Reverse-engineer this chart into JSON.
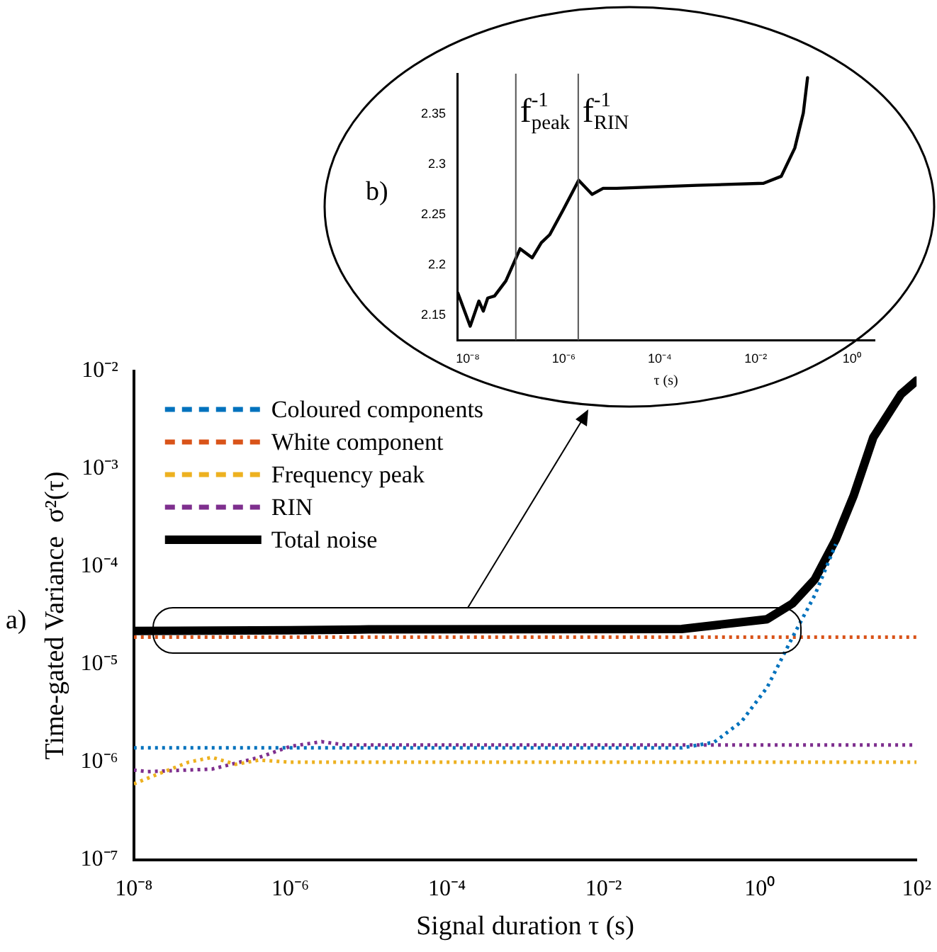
{
  "chart_data": [
    {
      "type": "line",
      "xlabel": "Signal duration τ (s)",
      "ylabel": "Time-gated Variance  σ²(τ)",
      "log": "xy",
      "xlim": [
        1e-08,
        100
      ],
      "ylim": [
        1e-07,
        0.01
      ],
      "xticks": [
        {
          "value": 1e-08,
          "label": "10⁻⁸"
        },
        {
          "value": 1e-06,
          "label": "10⁻⁶"
        },
        {
          "value": 0.0001,
          "label": "10⁻⁴"
        },
        {
          "value": 0.01,
          "label": "10⁻²"
        },
        {
          "value": 1,
          "label": "10⁰"
        },
        {
          "value": 100,
          "label": "10²"
        }
      ],
      "yticks": [
        {
          "value": 1e-07,
          "label": "10⁻⁷"
        },
        {
          "value": 1e-06,
          "label": "10⁻⁶"
        },
        {
          "value": 1e-05,
          "label": "10⁻⁵"
        },
        {
          "value": 0.0001,
          "label": "10⁻⁴"
        },
        {
          "value": 0.001,
          "label": "10⁻³"
        },
        {
          "value": 0.01,
          "label": "10⁻²"
        }
      ],
      "grid": false,
      "legend": "top left",
      "marker": "none",
      "annotations": [
        "a)"
      ],
      "series": [
        {
          "name": "Coloured components",
          "color": "#0072bd",
          "line_style": "dotted",
          "x": [
            1e-08,
            0.1,
            0.26,
            0.58,
            1.23,
            2.6,
            5.0,
            9.3
          ],
          "values": [
            1.4e-06,
            1.4e-06,
            1.6e-06,
            2.6e-06,
            5.8e-06,
            1.9e-05,
            5.1e-05,
            0.00017
          ]
        },
        {
          "name": "White component",
          "color": "#d95319",
          "line_style": "dotted",
          "x": [
            1e-08,
            100
          ],
          "values": [
            1.9e-05,
            1.9e-05
          ]
        },
        {
          "name": "Frequency peak",
          "color": "#edb120",
          "line_style": "dotted",
          "x": [
            1e-08,
            2e-08,
            5e-08,
            1e-07,
            2e-07,
            4e-07,
            1e-06,
            100
          ],
          "values": [
            6e-07,
            7.5e-07,
            1e-06,
            1.12e-06,
            9.5e-07,
            1.05e-06,
            1e-06,
            1e-06
          ]
        },
        {
          "name": "RIN",
          "color": "#7e2f8e",
          "line_style": "dotted",
          "x": [
            1e-08,
            1.5e-08,
            1e-07,
            4e-07,
            1e-06,
            2.5e-06,
            5e-06,
            100
          ],
          "values": [
            8.3e-07,
            8e-07,
            8.5e-07,
            1.12e-06,
            1.45e-06,
            1.62e-06,
            1.5e-06,
            1.5e-06
          ]
        },
        {
          "name": "Total noise",
          "color": "#000000",
          "line_style": "solid",
          "x": [
            1e-08,
            1e-06,
            1e-05,
            0.1,
            1.23,
            2.6,
            5.0,
            9.3,
            15.8,
            28,
            63,
            100
          ],
          "values": [
            2.2e-05,
            2.24e-05,
            2.28e-05,
            2.3e-05,
            2.9e-05,
            4.2e-05,
            7.4e-05,
            0.00019,
            0.00054,
            0.0021,
            0.0058,
            0.008
          ]
        }
      ]
    },
    {
      "type": "line",
      "xlabel": "τ (s)",
      "log": "x",
      "xlim": [
        6e-09,
        3
      ],
      "ylim": [
        2.125,
        2.39
      ],
      "xticks": [
        {
          "value": 1e-08,
          "label": "10⁻⁸"
        },
        {
          "value": 1e-06,
          "label": "10⁻⁶"
        },
        {
          "value": 0.0001,
          "label": "10⁻⁴"
        },
        {
          "value": 0.01,
          "label": "10⁻²"
        },
        {
          "value": 1,
          "label": "10⁰"
        }
      ],
      "yticks": [
        2.15,
        2.2,
        2.25,
        2.3,
        2.35
      ],
      "grid": false,
      "marker": "none",
      "annotations": [
        "b)"
      ],
      "ref_lines": [
        {
          "axis": "x",
          "value": 1e-07,
          "label": "f$_{peak}$$^{-1}$",
          "color": "#555555"
        },
        {
          "axis": "x",
          "value": 2e-06,
          "label": "f$_{RIN}$$^{-1}$",
          "color": "#555555"
        }
      ],
      "series": [
        {
          "color": "#000000",
          "line_style": "solid",
          "x": [
            6.2e-09,
            1.12e-08,
            1.7e-08,
            2.1e-08,
            2.6e-08,
            3.6e-08,
            6.2e-08,
            1.23e-07,
            2.2e-07,
            3.4e-07,
            5.1e-07,
            9.8e-07,
            2.04e-06,
            3.9e-06,
            6.6e-06,
            1.26e-05,
            0.00059,
            0.0145,
            0.034,
            0.065,
            0.098,
            0.12
          ],
          "values": [
            2.172,
            2.139,
            2.164,
            2.154,
            2.167,
            2.169,
            2.184,
            2.216,
            2.207,
            2.222,
            2.23,
            2.255,
            2.284,
            2.27,
            2.276,
            2.276,
            2.279,
            2.281,
            2.288,
            2.316,
            2.351,
            2.386
          ]
        }
      ]
    }
  ]
}
